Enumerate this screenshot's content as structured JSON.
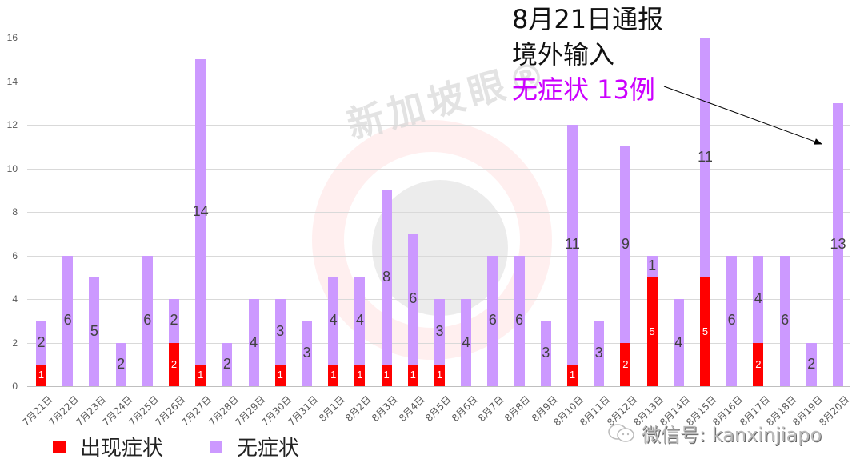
{
  "chart_data": {
    "type": "bar",
    "stacked": true,
    "title": "",
    "xlabel": "",
    "ylabel": "",
    "ylim": [
      0,
      16
    ],
    "yticks": [
      0,
      2,
      4,
      6,
      8,
      10,
      12,
      14,
      16
    ],
    "grid": true,
    "legend_position": "bottom-left",
    "categories": [
      "7月21日",
      "7月22日",
      "7月23日",
      "7月24日",
      "7月25日",
      "7月26日",
      "7月27日",
      "7月28日",
      "7月29日",
      "7月30日",
      "7月31日",
      "8月1日",
      "8月2日",
      "8月3日",
      "8月4日",
      "8月5日",
      "8月6日",
      "8月7日",
      "8月8日",
      "8月9日",
      "8月10日",
      "8月11日",
      "8月12日",
      "8月13日",
      "8月14日",
      "8月15日",
      "8月16日",
      "8月17日",
      "8月18日",
      "8月19日",
      "8月20日"
    ],
    "series": [
      {
        "name": "出现症状",
        "color": "#ff0000",
        "values": [
          1,
          0,
          0,
          0,
          0,
          2,
          1,
          0,
          0,
          1,
          0,
          1,
          1,
          1,
          1,
          1,
          0,
          0,
          0,
          0,
          1,
          0,
          2,
          5,
          0,
          5,
          0,
          2,
          0,
          0,
          0
        ]
      },
      {
        "name": "无症状",
        "color": "#cc99ff",
        "values": [
          2,
          6,
          5,
          2,
          6,
          2,
          14,
          2,
          4,
          3,
          3,
          4,
          4,
          8,
          6,
          3,
          4,
          6,
          6,
          3,
          11,
          3,
          9,
          1,
          4,
          11,
          6,
          4,
          6,
          2,
          13
        ]
      }
    ],
    "annotations": [
      {
        "lines": [
          "8月21日通报",
          "境外输入",
          "无症状 13例"
        ],
        "highlight_color": "#cc00ff",
        "arrow_to": "8月20日"
      }
    ]
  },
  "annotation": {
    "line1": "8月21日通报",
    "line2": "境外输入",
    "line3": "无症状 13例"
  },
  "legend": {
    "items": [
      {
        "label": "出现症状",
        "color": "#ff0000"
      },
      {
        "label": "无症状",
        "color": "#cc99ff"
      }
    ]
  },
  "watermark": {
    "brand": "新加坡眼®",
    "wechat": "微信号: kanxinjiapo"
  }
}
